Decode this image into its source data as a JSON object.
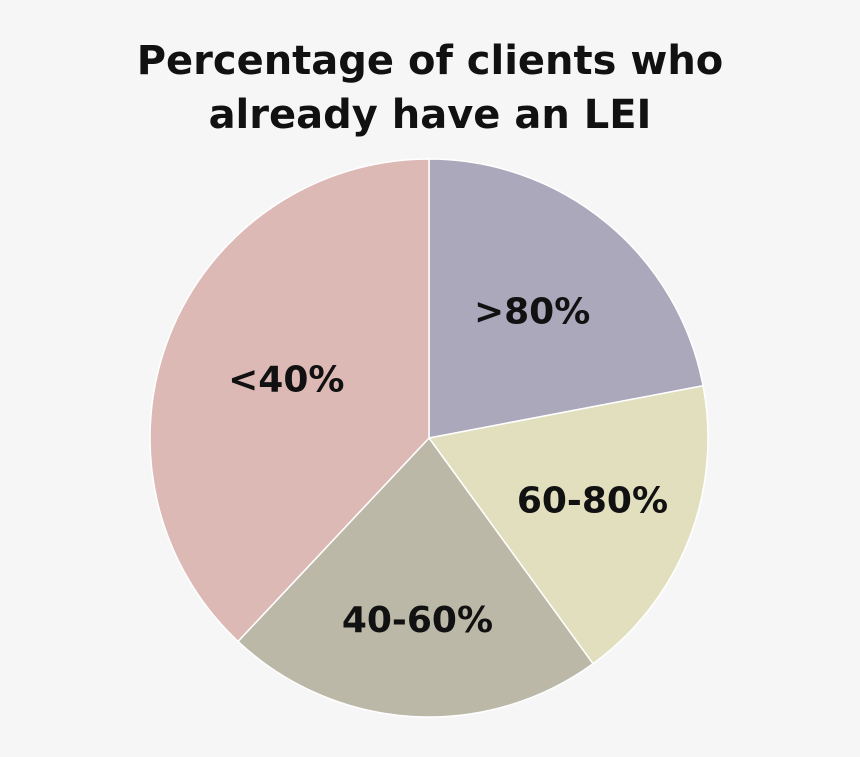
{
  "chart_data": {
    "type": "pie",
    "title_lines": [
      "Percentage of clients who",
      "already have an LEI"
    ],
    "categories": [
      ">80%",
      "60-80%",
      "40-60%",
      "<40%"
    ],
    "values": [
      22,
      18,
      22,
      38
    ],
    "colors": [
      "#aba8bb",
      "#e1dfbd",
      "#bcb8a8",
      "#ddb9b5"
    ],
    "legend": "none"
  }
}
